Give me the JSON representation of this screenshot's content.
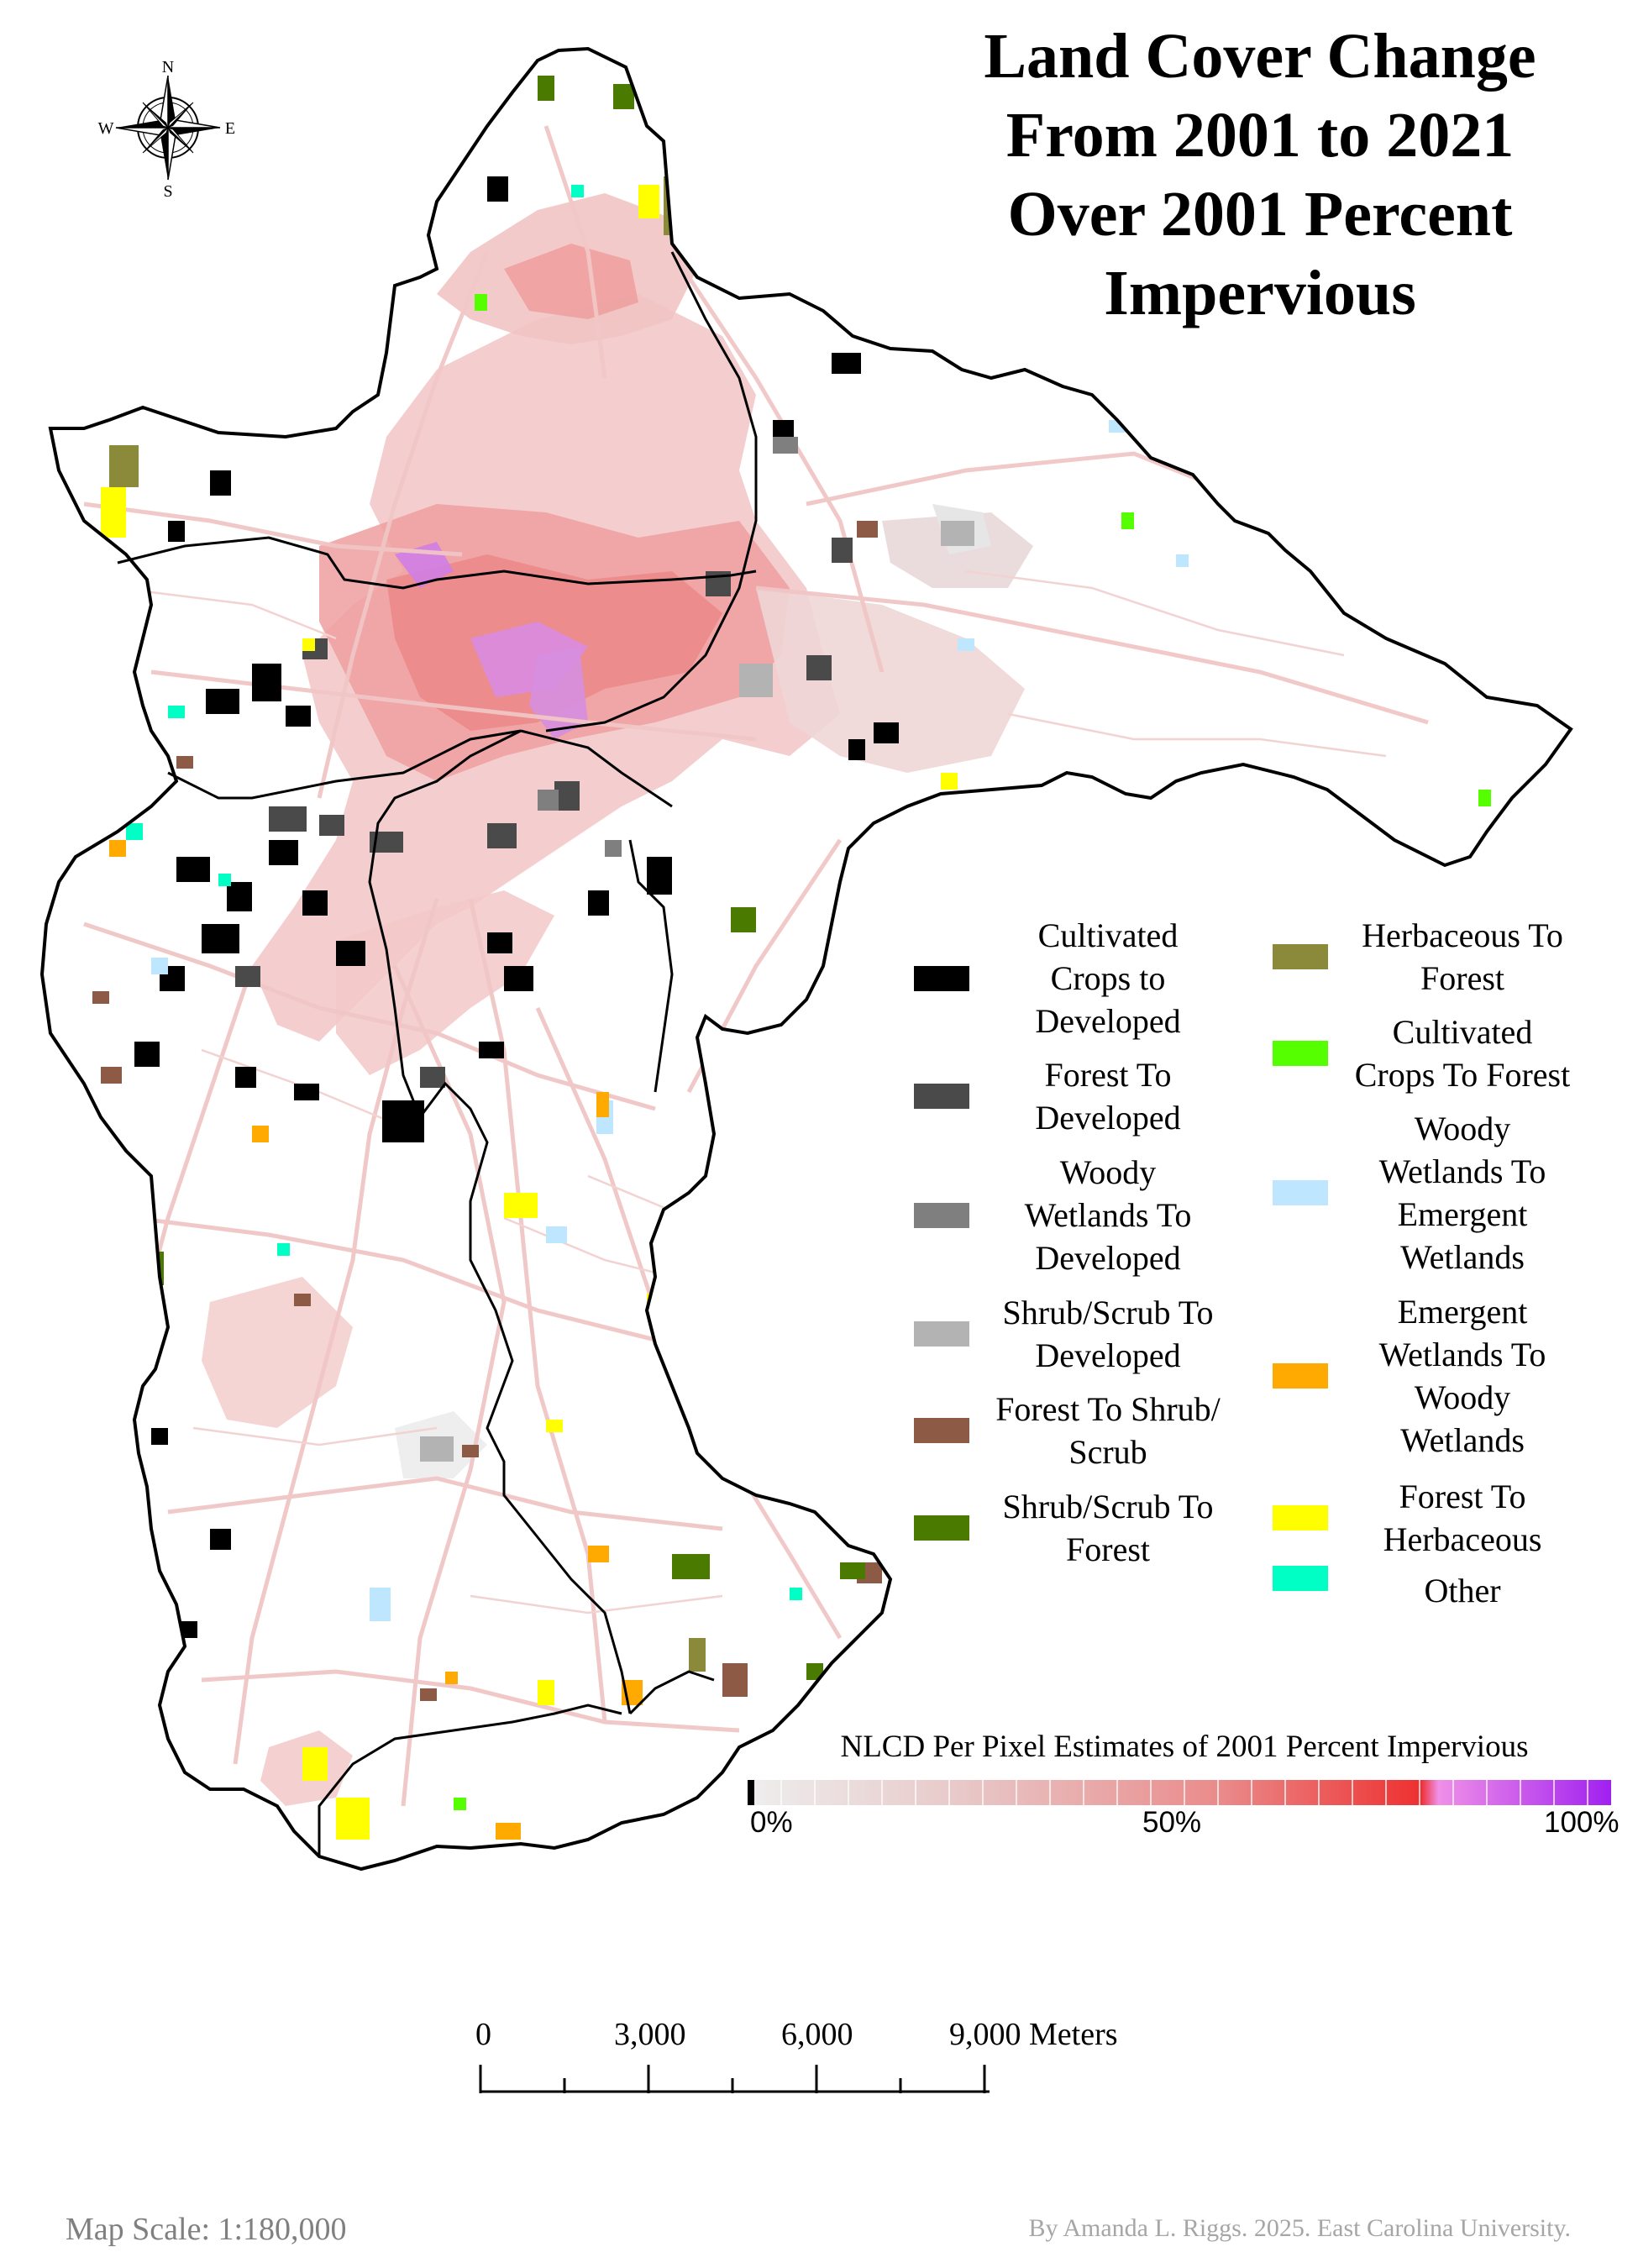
{
  "title": {
    "line1": "Land Cover Change",
    "line2": "From 2001 to 2021",
    "line3": "Over 2001 Percent",
    "line4": "Impervious"
  },
  "compass": {
    "n": "N",
    "s": "S",
    "e": "E",
    "w": "W"
  },
  "legend": {
    "left": [
      {
        "label": "Cultivated Crops to Developed",
        "lines": [
          "Cultivated",
          "Crops to",
          "Developed"
        ],
        "color": "#000000"
      },
      {
        "label": "Forest To Developed",
        "lines": [
          "Forest To",
          "Developed"
        ],
        "color": "#4a4a4a"
      },
      {
        "label": "Woody Wetlands To Developed",
        "lines": [
          "Woody",
          "Wetlands To",
          "Developed"
        ],
        "color": "#7f7f7f"
      },
      {
        "label": "Shrub/Scrub To Developed",
        "lines": [
          "Shrub/Scrub To",
          "Developed"
        ],
        "color": "#b3b3b3"
      },
      {
        "label": "Forest To Shrub/Scrub",
        "lines": [
          "Forest To Shrub/",
          "Scrub"
        ],
        "color": "#8c5a45"
      },
      {
        "label": "Shrub/Scrub To Forest",
        "lines": [
          "Shrub/Scrub To",
          "Forest"
        ],
        "color": "#4a7a00"
      }
    ],
    "right": [
      {
        "label": "Herbaceous To Forest",
        "lines": [
          "Herbaceous To",
          "Forest"
        ],
        "color": "#8a8a3a"
      },
      {
        "label": "Cultivated Crops To Forest",
        "lines": [
          "Cultivated",
          "Crops To Forest"
        ],
        "color": "#55ff00"
      },
      {
        "label": "Woody Wetlands To Emergent Wetlands",
        "lines": [
          "Woody",
          "Wetlands To",
          "Emergent",
          "Wetlands"
        ],
        "color": "#bee6ff"
      },
      {
        "label": "Emergent Wetlands To Woody Wetlands",
        "lines": [
          "Emergent",
          "Wetlands To",
          "Woody",
          "Wetlands"
        ],
        "color": "#ffaa00"
      },
      {
        "label": "Forest To Herbaceous",
        "lines": [
          "Forest To",
          "Herbaceous"
        ],
        "color": "#ffff00"
      },
      {
        "label": "Other",
        "lines": [
          "Other"
        ],
        "color": "#00ffc5"
      }
    ]
  },
  "impervious_ramp": {
    "title": "NLCD Per Pixel Estimates of 2001 Percent Impervious",
    "min_label": "0%",
    "mid_label": "50%",
    "max_label": "100%"
  },
  "scale_bar": {
    "ticks": [
      "0",
      "3,000",
      "6,000",
      "9,000 Meters"
    ]
  },
  "footer": {
    "map_scale": "Map Scale: 1:180,000",
    "credit": "By Amanda L. Riggs. 2025. East Carolina University."
  },
  "colors": {
    "impervious_light": "#f2d6d6",
    "impervious_mid": "#ec9a9a",
    "impervious_high": "#e03030",
    "impervious_max": "#a020f0"
  }
}
